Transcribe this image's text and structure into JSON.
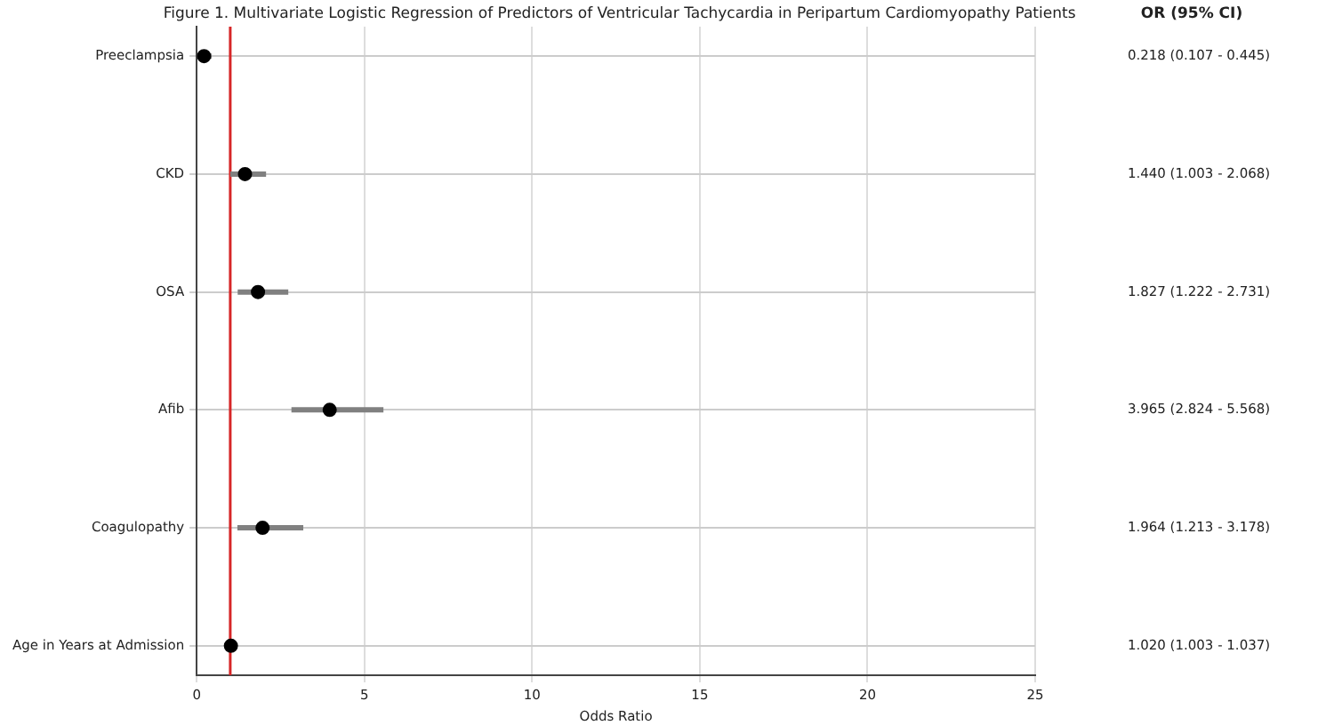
{
  "chart_data": {
    "type": "scatter",
    "orientation": "horizontal",
    "title": "Figure 1. Multivariate Logistic Regression of Predictors of Ventricular Tachycardia in Peripartum Cardiomyopathy Patients",
    "xlabel": "Odds Ratio",
    "categories": [
      "Preeclampsia",
      "CKD",
      "OSA",
      "Afib",
      "Coagulopathy",
      "Age in Years at Admission"
    ],
    "values": [
      0.218,
      1.44,
      1.827,
      3.965,
      1.964,
      1.02
    ],
    "errors": [
      [
        0.107,
        0.445
      ],
      [
        1.003,
        2.068
      ],
      [
        1.222,
        2.731
      ],
      [
        2.824,
        5.568
      ],
      [
        1.213,
        3.178
      ],
      [
        1.003,
        1.037
      ]
    ],
    "value_labels": [
      "0.218 (0.107 - 0.445)",
      "1.440 (1.003 - 2.068)",
      "1.827 (1.222 - 2.731)",
      "3.965 (2.824 - 5.568)",
      "1.964 (1.213 - 3.178)",
      "1.020 (1.003 - 1.037)"
    ],
    "annotations": [
      "OR (95% CI)"
    ],
    "color": "#000000",
    "marker": "circle",
    "grid": true,
    "xlim": [
      0,
      25
    ],
    "xticks": [
      0,
      5,
      10,
      15,
      20,
      25
    ],
    "ref_lines": [
      {
        "axis": "x",
        "value": 1,
        "color": "#d62728"
      }
    ]
  }
}
